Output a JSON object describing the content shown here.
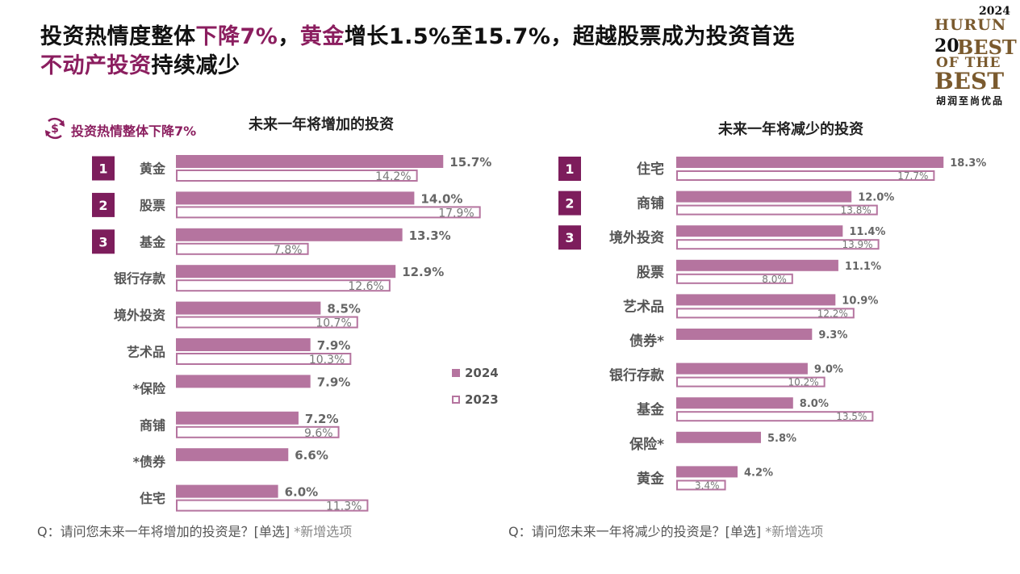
{
  "headline": {
    "part1": "投资热情度整体",
    "part2": "下降7%",
    "part3": "，",
    "part4": "黄金",
    "part5": "增长1.5%至15.7%，超越股票成为投资首选",
    "part6": "不动产投资",
    "part7": "持续减少"
  },
  "logo": {
    "year": "2024",
    "brand": "HURUN",
    "num": "20",
    "best1": "BEST",
    "ofthe": "OF THE",
    "best2": "BEST",
    "cn": "胡润至尚优品"
  },
  "badge": {
    "text": "投资热情整体下降7%"
  },
  "colors": {
    "accent": "#8b1e5f",
    "bar2024": "#b5749f",
    "bar2023_border": "#b5749f",
    "rank_bg": "#7d1d5c"
  },
  "legend": {
    "series2024": "2024",
    "series2023": "2023"
  },
  "footnotes": {
    "left": "Q：请问您未来一年将增加的投资是？[单选]",
    "left_note": "*新增选项",
    "right": "Q：请问您未来一年将减少的投资是？[单选]",
    "right_note": "*新增选项"
  },
  "chart_data": [
    {
      "type": "bar",
      "title": "未来一年将增加的投资",
      "orientation": "horizontal",
      "categories": [
        "黄金",
        "股票",
        "基金",
        "银行存款",
        "境外投资",
        "艺术品",
        "*保险",
        "商铺",
        "*债券",
        "住宅"
      ],
      "ranks": [
        "1",
        "2",
        "3"
      ],
      "series": [
        {
          "name": "2024",
          "values": [
            15.7,
            14.0,
            13.3,
            12.9,
            8.5,
            7.9,
            7.9,
            7.2,
            6.6,
            6.0
          ],
          "labels": [
            "15.7%",
            "14.0%",
            "13.3%",
            "12.9%",
            "8.5%",
            "7.9%",
            "7.9%",
            "7.2%",
            "6.6%",
            "6.0%"
          ]
        },
        {
          "name": "2023",
          "values": [
            14.2,
            17.9,
            7.8,
            12.6,
            10.7,
            10.3,
            null,
            9.6,
            null,
            11.3
          ],
          "labels": [
            "14.2%",
            "17.9%",
            "7.8%",
            "12.6%",
            "10.7%",
            "10.3%",
            null,
            "9.6%",
            null,
            "11.3%"
          ]
        }
      ],
      "legend_position": "right"
    },
    {
      "type": "bar",
      "title": "未来一年将减少的投资",
      "orientation": "horizontal",
      "categories": [
        "住宅",
        "商铺",
        "境外投资",
        "股票",
        "艺术品",
        "债券*",
        "银行存款",
        "基金",
        "保险*",
        "黄金"
      ],
      "ranks": [
        "1",
        "2",
        "3"
      ],
      "series": [
        {
          "name": "2024",
          "values": [
            18.3,
            12.0,
            11.4,
            11.1,
            10.9,
            9.3,
            9.0,
            8.0,
            5.8,
            4.2
          ],
          "labels": [
            "18.3%",
            "12.0%",
            "11.4%",
            "11.1%",
            "10.9%",
            "9.3%",
            "9.0%",
            "8.0%",
            "5.8%",
            "4.2%"
          ]
        },
        {
          "name": "2023",
          "values": [
            17.7,
            13.8,
            13.9,
            8.0,
            12.2,
            null,
            10.2,
            13.5,
            null,
            3.4
          ],
          "labels": [
            "17.7%",
            "13.8%",
            "13.9%",
            "8.0%",
            "12.2%",
            null,
            "10.2%",
            "13.5%",
            null,
            "3.4%"
          ]
        }
      ]
    }
  ]
}
